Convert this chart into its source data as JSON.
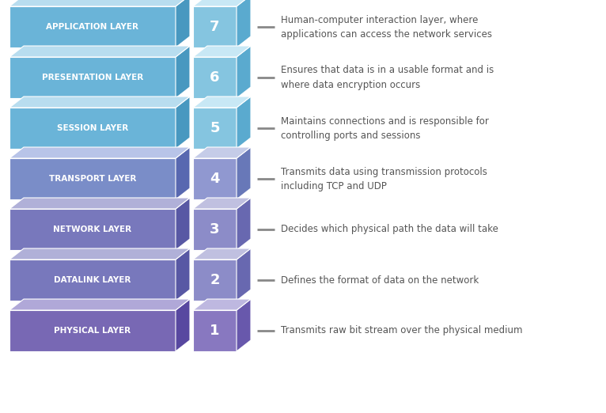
{
  "layers": [
    {
      "name": "APPLICATION LAYER",
      "number": "7",
      "description": "Human-computer interaction layer, where\napplications can access the network services",
      "main_color": "#6AB4D8",
      "top_color": "#B8DDEF",
      "side_color": "#4898C0",
      "num_color": "#85C5E0",
      "num_top_color": "#C8E8F5",
      "num_side_color": "#5AAACF"
    },
    {
      "name": "PRESENTATION LAYER",
      "number": "6",
      "description": "Ensures that data is in a usable format and is\nwhere data encryption occurs",
      "main_color": "#6AB4D8",
      "top_color": "#B8DDEF",
      "side_color": "#4898C0",
      "num_color": "#85C5E0",
      "num_top_color": "#C8E8F5",
      "num_side_color": "#5AAACF"
    },
    {
      "name": "SESSION LAYER",
      "number": "5",
      "description": "Maintains connections and is responsible for\ncontrolling ports and sessions",
      "main_color": "#6AB4D8",
      "top_color": "#B8DDEF",
      "side_color": "#4898C0",
      "num_color": "#85C5E0",
      "num_top_color": "#C8E8F5",
      "num_side_color": "#5AAACF"
    },
    {
      "name": "TRANSPORT LAYER",
      "number": "4",
      "description": "Transmits data using transmission protocols\nincluding TCP and UDP",
      "main_color": "#7A8DC8",
      "top_color": "#B8C4E8",
      "side_color": "#5868B0",
      "num_color": "#9098D0",
      "num_top_color": "#C5CCE8",
      "num_side_color": "#6878B8"
    },
    {
      "name": "NETWORK LAYER",
      "number": "3",
      "description": "Decides which physical path the data will take",
      "main_color": "#7878BC",
      "top_color": "#B0B0D8",
      "side_color": "#5858A4",
      "num_color": "#8C8CC8",
      "num_top_color": "#C0C0E0",
      "num_side_color": "#6868B0"
    },
    {
      "name": "DATALINK LAYER",
      "number": "2",
      "description": "Defines the format of data on the network",
      "main_color": "#7878BC",
      "top_color": "#B0B0D8",
      "side_color": "#5858A4",
      "num_color": "#8C8CC8",
      "num_top_color": "#C0C0E0",
      "num_side_color": "#6868B0"
    },
    {
      "name": "PHYSICAL LAYER",
      "number": "1",
      "description": "Transmits raw bit stream over the physical medium",
      "main_color": "#7868B4",
      "top_color": "#B0A8D8",
      "side_color": "#5848A0",
      "num_color": "#8878C0",
      "num_top_color": "#BEB8E0",
      "num_side_color": "#6858AC"
    }
  ],
  "background_color": "#FFFFFF",
  "text_color": "#555555",
  "label_color": "#FFFFFF",
  "fig_width": 7.66,
  "fig_height": 5.22,
  "dpi": 100
}
